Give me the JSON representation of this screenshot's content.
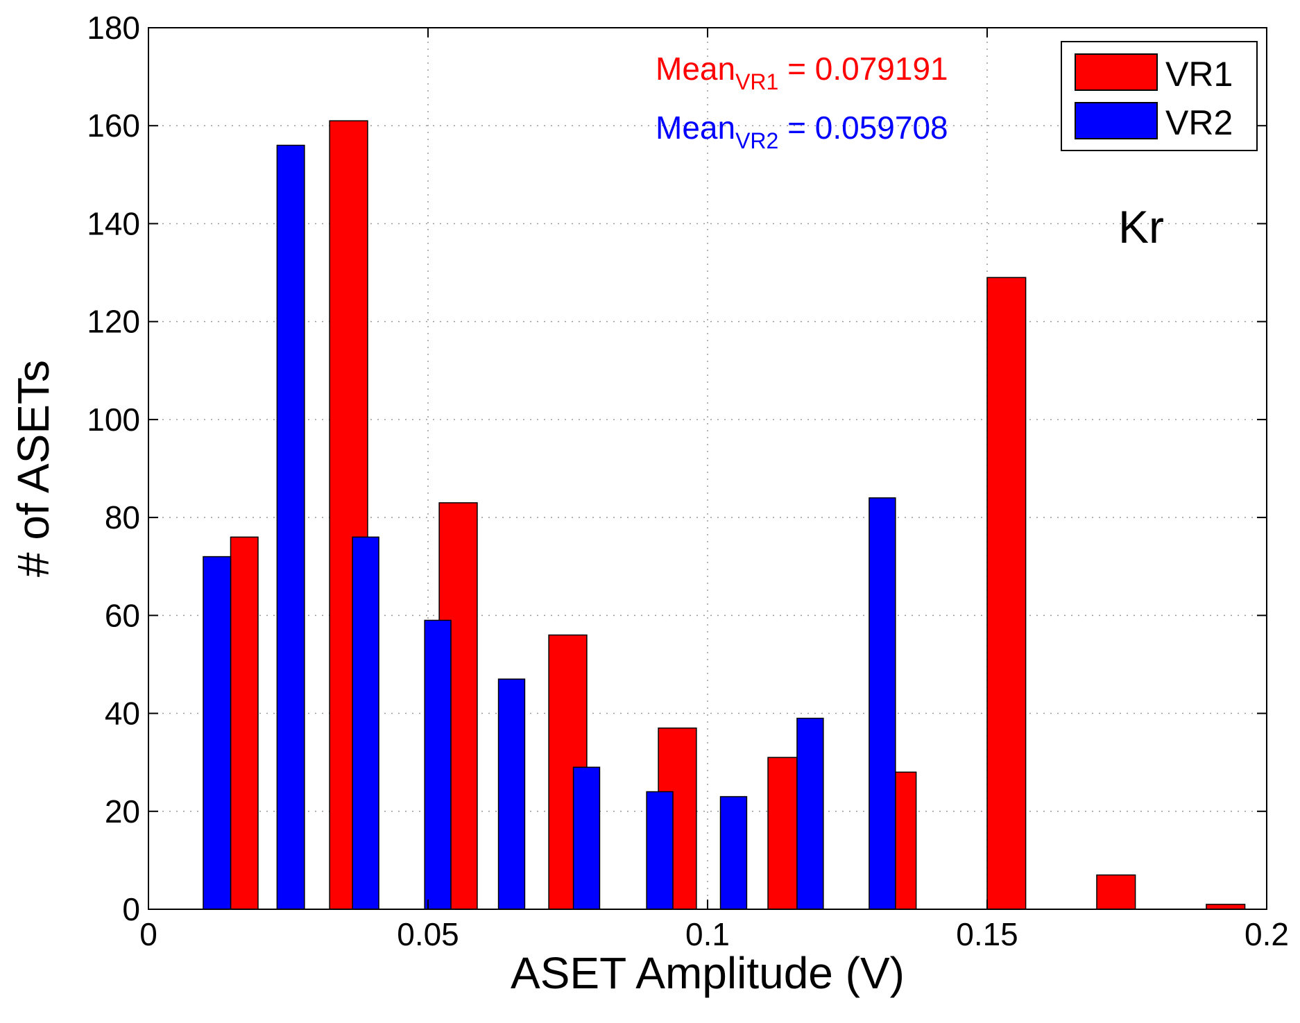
{
  "chart_data": {
    "type": "bar",
    "xlabel": "ASET Amplitude (V)",
    "ylabel": "# of ASETs",
    "xlim": [
      0,
      0.2
    ],
    "ylim": [
      0,
      180
    ],
    "xticks": [
      0,
      0.05,
      0.1,
      0.15,
      0.2
    ],
    "xtick_labels": [
      "0",
      "0.05",
      "0.1",
      "0.15",
      "0.2"
    ],
    "yticks": [
      0,
      20,
      40,
      60,
      80,
      100,
      120,
      140,
      160,
      180
    ],
    "ytick_labels": [
      "0",
      "20",
      "40",
      "60",
      "80",
      "100",
      "120",
      "140",
      "160",
      "180"
    ],
    "grid": true,
    "legend_position": "top-right",
    "series": [
      {
        "name": "VR1",
        "color": "#ff0000",
        "points": [
          {
            "x_start": 0.0147,
            "x_end": 0.0196,
            "y": 76
          },
          {
            "x_start": 0.0324,
            "x_end": 0.0392,
            "y": 161
          },
          {
            "x_start": 0.052,
            "x_end": 0.0588,
            "y": 83
          },
          {
            "x_start": 0.0716,
            "x_end": 0.0784,
            "y": 56
          },
          {
            "x_start": 0.0912,
            "x_end": 0.098,
            "y": 37
          },
          {
            "x_start": 0.1108,
            "x_end": 0.116,
            "y": 31
          },
          {
            "x_start": 0.1336,
            "x_end": 0.1373,
            "y": 28
          },
          {
            "x_start": 0.15,
            "x_end": 0.1569,
            "y": 129
          },
          {
            "x_start": 0.1696,
            "x_end": 0.1765,
            "y": 7
          },
          {
            "x_start": 0.1892,
            "x_end": 0.1961,
            "y": 1
          }
        ]
      },
      {
        "name": "VR2",
        "color": "#0000ff",
        "points": [
          {
            "x_start": 0.0098,
            "x_end": 0.0147,
            "y": 72
          },
          {
            "x_start": 0.023,
            "x_end": 0.0279,
            "y": 156
          },
          {
            "x_start": 0.0365,
            "x_end": 0.0412,
            "y": 76
          },
          {
            "x_start": 0.0494,
            "x_end": 0.0541,
            "y": 59
          },
          {
            "x_start": 0.0626,
            "x_end": 0.0673,
            "y": 47
          },
          {
            "x_start": 0.076,
            "x_end": 0.0807,
            "y": 29
          },
          {
            "x_start": 0.0891,
            "x_end": 0.0938,
            "y": 24
          },
          {
            "x_start": 0.1023,
            "x_end": 0.107,
            "y": 23
          },
          {
            "x_start": 0.116,
            "x_end": 0.1207,
            "y": 39
          },
          {
            "x_start": 0.1289,
            "x_end": 0.1336,
            "y": 84
          }
        ]
      }
    ],
    "annotations": [
      {
        "base": "Mean",
        "sub": "VR1",
        "rest": " = 0.079191",
        "color": "#ff0000"
      },
      {
        "base": "Mean",
        "sub": "VR2",
        "rest": " = 0.059708",
        "color": "#0000ff"
      }
    ],
    "label": "Kr"
  }
}
